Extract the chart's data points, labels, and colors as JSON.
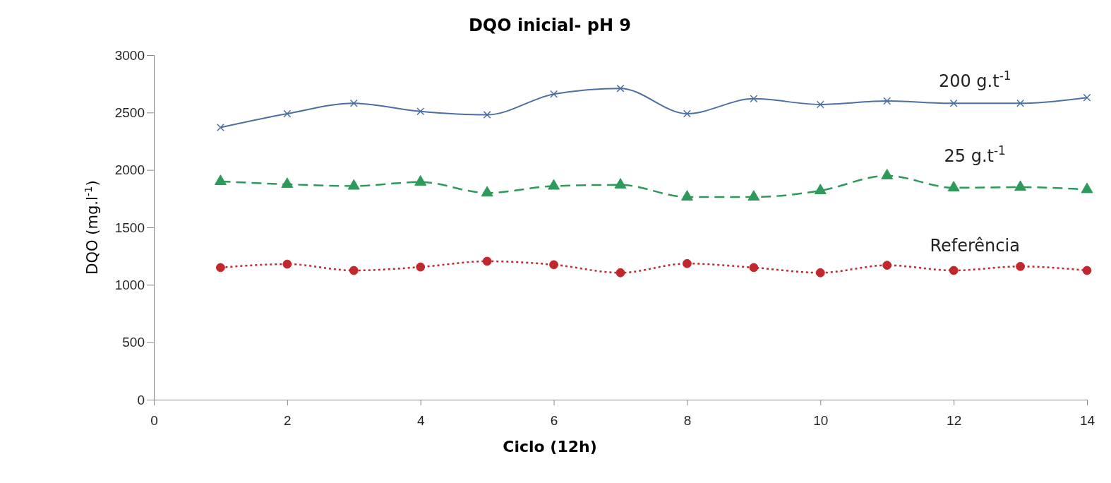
{
  "chart_data": {
    "type": "line",
    "title": "DQO inicial- pH 9",
    "xlabel": "Ciclo (12h)",
    "ylabel": "DQO (mg.l$^{-1}$)",
    "x": [
      1,
      2,
      3,
      4,
      5,
      6,
      7,
      8,
      9,
      10,
      11,
      12,
      13,
      14
    ],
    "xlim": [
      0,
      14
    ],
    "xticks": [
      0,
      2,
      4,
      6,
      8,
      10,
      12,
      14
    ],
    "ylim": [
      0,
      3000
    ],
    "yticks": [
      0,
      500,
      1000,
      1500,
      2000,
      2500,
      3000
    ],
    "grid": false,
    "legend": false,
    "series": [
      {
        "name": "200 g.t$^{-1}$",
        "color": "#4a6fa5",
        "marker": "cross",
        "line_style": "solid",
        "values": [
          2370,
          2490,
          2580,
          2510,
          2480,
          2660,
          2710,
          2490,
          2620,
          2570,
          2600,
          2580,
          2580,
          2630
        ]
      },
      {
        "name": "25 g.t$^{-1}$",
        "color": "#2e9a5a",
        "marker": "triangle",
        "line_style": "dashed",
        "values": [
          1900,
          1875,
          1860,
          1895,
          1800,
          1860,
          1870,
          1765,
          1765,
          1820,
          1950,
          1845,
          1850,
          1830
        ]
      },
      {
        "name": "Referência",
        "color": "#c0282d",
        "marker": "circle",
        "line_style": "dotted",
        "values": [
          1150,
          1180,
          1125,
          1155,
          1205,
          1175,
          1105,
          1185,
          1150,
          1105,
          1170,
          1125,
          1160,
          1125
        ]
      }
    ]
  }
}
